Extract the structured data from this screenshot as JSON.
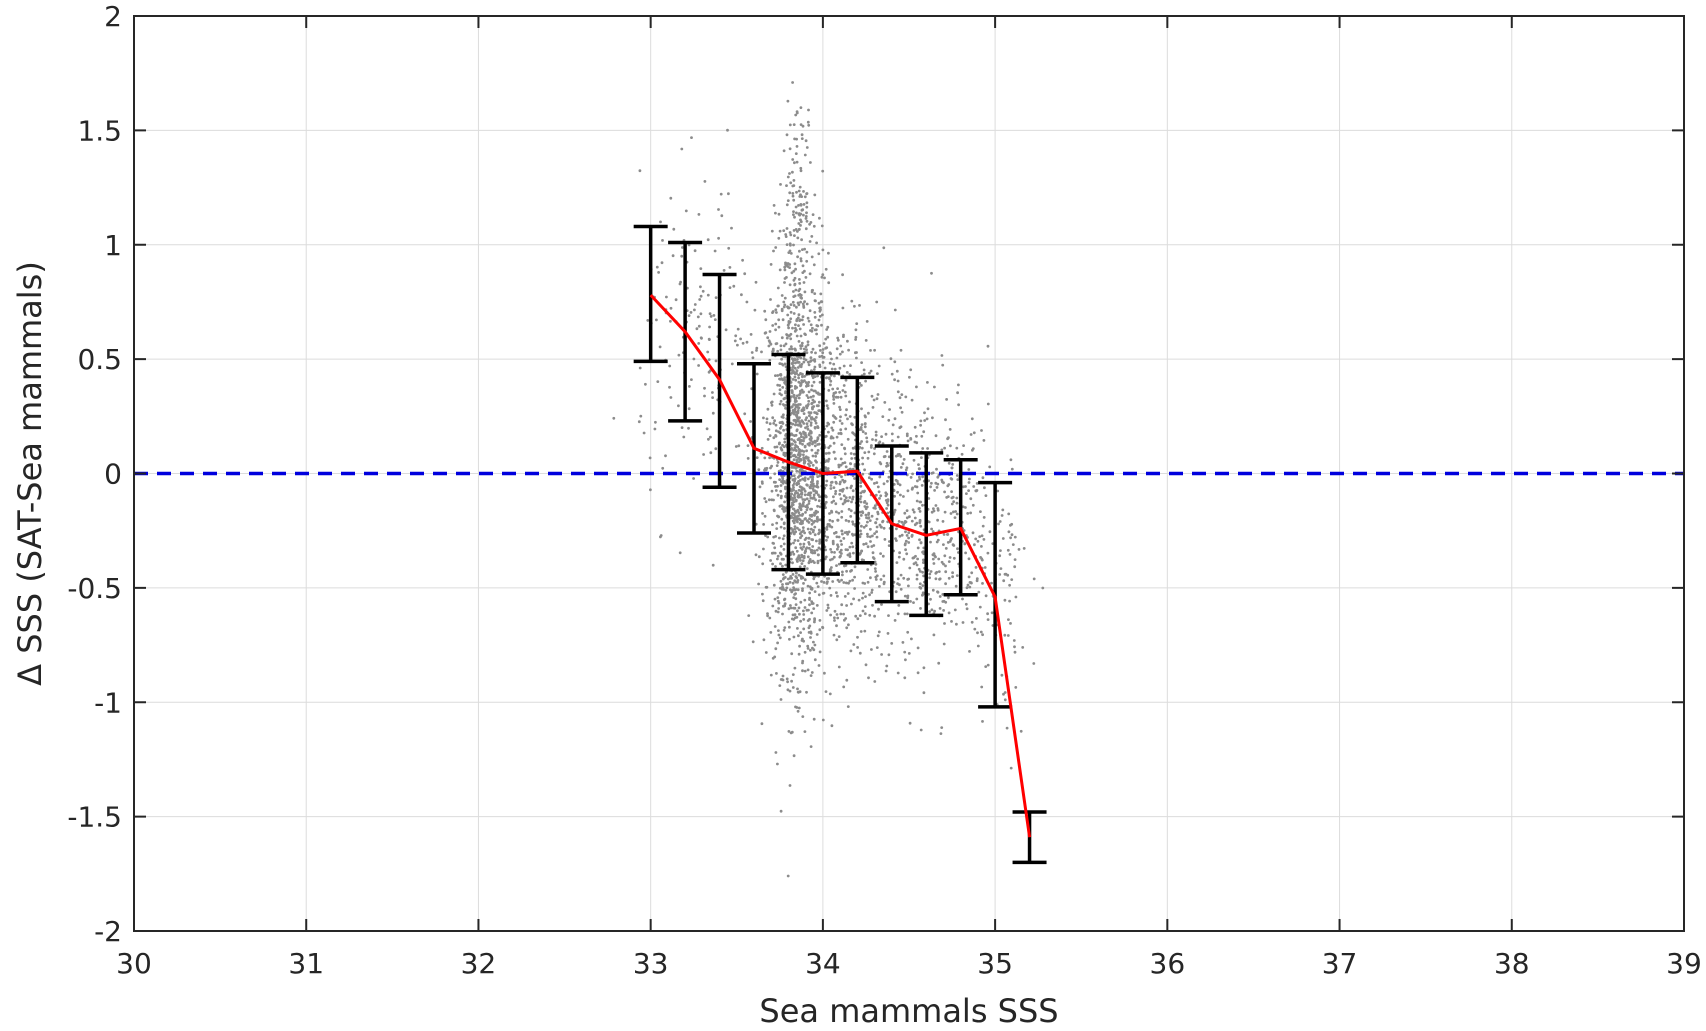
{
  "chart_data": {
    "type": "scatter",
    "title": "",
    "xlabel": "Sea mammals SSS",
    "ylabel": "Δ SSS (SAT-Sea mammals)",
    "xlim": [
      30,
      39
    ],
    "ylim": [
      -2,
      2
    ],
    "xticks": [
      30,
      31,
      32,
      33,
      34,
      35,
      36,
      37,
      38,
      39
    ],
    "yticks": [
      -2,
      -1.5,
      -1,
      -0.5,
      0,
      0.5,
      1,
      1.5,
      2
    ],
    "xtick_labels": [
      "30",
      "31",
      "32",
      "33",
      "34",
      "35",
      "36",
      "37",
      "38",
      "39"
    ],
    "ytick_labels": [
      "-2",
      "-1.5",
      "-1",
      "-0.5",
      "0",
      "0.5",
      "1",
      "1.5",
      "2"
    ],
    "grid": true,
    "legend": "none",
    "colors": {
      "scatter": "#8c8c8c",
      "mean_line": "#ff0000",
      "error_bars": "#000000",
      "zero_line": "#0000dd",
      "grid": "#dcdcdc",
      "axes": "#262626"
    },
    "scatter_clusters": [
      {
        "x_center": 33.85,
        "x_spread": 0.09,
        "y_center": 0.05,
        "y_spread": 0.45,
        "count": 1400
      },
      {
        "x_center": 34.1,
        "x_spread": 0.16,
        "y_center": -0.05,
        "y_spread": 0.38,
        "count": 700
      },
      {
        "x_center": 34.55,
        "x_spread": 0.22,
        "y_center": -0.2,
        "y_spread": 0.3,
        "count": 600
      },
      {
        "x_center": 33.3,
        "x_spread": 0.18,
        "y_center": 0.55,
        "y_spread": 0.35,
        "count": 160
      },
      {
        "x_center": 35.0,
        "x_spread": 0.1,
        "y_center": -0.6,
        "y_spread": 0.35,
        "count": 80
      },
      {
        "x_center": 33.85,
        "x_spread": 0.05,
        "y_center": 1.2,
        "y_spread": 0.2,
        "count": 120
      }
    ],
    "series": [
      {
        "kind": "binned-mean-with-errorbars",
        "x": [
          33.0,
          33.2,
          33.4,
          33.6,
          33.8,
          34.0,
          34.2,
          34.4,
          34.6,
          34.8,
          35.0,
          35.2
        ],
        "mean": [
          0.78,
          0.62,
          0.41,
          0.11,
          0.05,
          0.0,
          0.01,
          -0.22,
          -0.27,
          -0.24,
          -0.54,
          -1.59
        ],
        "upper": [
          1.08,
          1.01,
          0.87,
          0.48,
          0.52,
          0.44,
          0.42,
          0.12,
          0.09,
          0.06,
          -0.04,
          -1.48
        ],
        "lower": [
          0.49,
          0.23,
          -0.06,
          -0.26,
          -0.42,
          -0.44,
          -0.39,
          -0.56,
          -0.62,
          -0.53,
          -1.02,
          -1.7
        ]
      },
      {
        "kind": "reference-line",
        "y": 0,
        "style": "dashed"
      }
    ]
  }
}
